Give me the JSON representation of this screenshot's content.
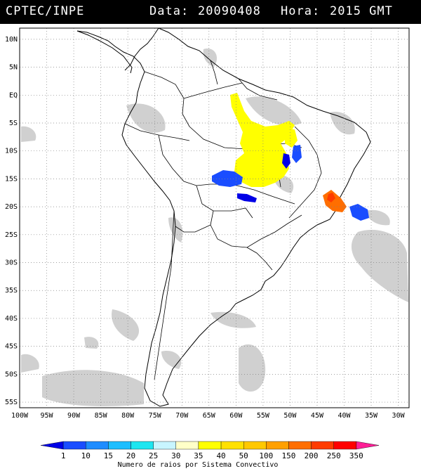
{
  "header": {
    "agency": "CPTEC/INPE",
    "date_label": "Data:",
    "date": "20090408",
    "hour_label": "Hora:",
    "hour": "2015 GMT"
  },
  "map": {
    "lon_min": -100,
    "lon_max": -28,
    "lat_min": -56,
    "lat_max": 12,
    "lat_labels": [
      {
        "lat": 10,
        "text": "10N"
      },
      {
        "lat": 5,
        "text": "5N"
      },
      {
        "lat": 0,
        "text": "EQ"
      },
      {
        "lat": -5,
        "text": "5S"
      },
      {
        "lat": -10,
        "text": "10S"
      },
      {
        "lat": -15,
        "text": "15S"
      },
      {
        "lat": -20,
        "text": "20S"
      },
      {
        "lat": -25,
        "text": "25S"
      },
      {
        "lat": -30,
        "text": "30S"
      },
      {
        "lat": -35,
        "text": "35S"
      },
      {
        "lat": -40,
        "text": "40S"
      },
      {
        "lat": -45,
        "text": "45S"
      },
      {
        "lat": -50,
        "text": "50S"
      },
      {
        "lat": -55,
        "text": "55S"
      }
    ],
    "lon_labels": [
      {
        "lon": -100,
        "text": "100W"
      },
      {
        "lon": -95,
        "text": "95W"
      },
      {
        "lon": -90,
        "text": "90W"
      },
      {
        "lon": -85,
        "text": "85W"
      },
      {
        "lon": -80,
        "text": "80W"
      },
      {
        "lon": -75,
        "text": "75W"
      },
      {
        "lon": -70,
        "text": "70W"
      },
      {
        "lon": -65,
        "text": "65W"
      },
      {
        "lon": -60,
        "text": "60W"
      },
      {
        "lon": -55,
        "text": "55W"
      },
      {
        "lon": -50,
        "text": "50W"
      },
      {
        "lon": -45,
        "text": "45W"
      },
      {
        "lon": -40,
        "text": "40W"
      },
      {
        "lon": -35,
        "text": "35W"
      },
      {
        "lon": -30,
        "text": "30W"
      }
    ]
  },
  "legend": {
    "values": [
      "1",
      "10",
      "15",
      "20",
      "25",
      "30",
      "35",
      "40",
      "50",
      "100",
      "150",
      "200",
      "250",
      "350"
    ],
    "colors": [
      "#0000e6",
      "#1a4dff",
      "#1e8cff",
      "#1ebeff",
      "#1ee6f0",
      "#c8f5ff",
      "#ffffc8",
      "#ffff00",
      "#ffe100",
      "#ffc800",
      "#ffa000",
      "#ff6e00",
      "#ff3c00",
      "#ff0000",
      "#ff1e96"
    ],
    "caption": "Numero de raios por Sistema Convectivo"
  }
}
